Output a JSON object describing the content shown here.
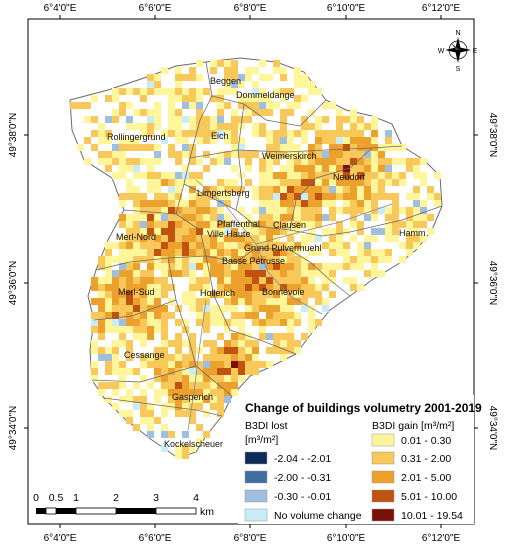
{
  "axes": {
    "top_ticks": [
      "6°4'0\"E",
      "6°6'0\"E",
      "6°8'0\"E",
      "6°10'0\"E",
      "6°12'0\"E"
    ],
    "bottom_ticks": [
      "6°4'0\"E",
      "6°6'0\"E",
      "6°8'0\"E",
      "6°10'0\"E",
      "6°12'0\"E"
    ],
    "left_ticks": [
      "49°38'0\"N",
      "49°36'0\"N",
      "49°34'0\"N"
    ],
    "right_ticks": [
      "49°38'0\"N",
      "49°36'0\"N",
      "49°34'0\"N"
    ]
  },
  "compass": {
    "n": "N",
    "e": "E",
    "s": "S",
    "w": "W"
  },
  "places": [
    "Beggen",
    "Dommeldange",
    "Rollingergrund",
    "Eich",
    "Weimerskirch",
    "Neudorf",
    "Limpertsberg",
    "Pfaffenthal",
    "Clausen",
    "Ville Haute",
    "Merl-Nord",
    "Grund Pulvermuehl",
    "Hamm",
    "Basse Pétrusse",
    "Merl-Sud",
    "Hollerich",
    "Bonnevoie",
    "Cessange",
    "Gasperich",
    "Kockelscheuer"
  ],
  "legend": {
    "title": "Change of buildings volumetry 2001-2019",
    "lost_header": "B3DI lost",
    "lost_units": "[m³/m²]",
    "gain_header": "B3DI gain [m³/m²]",
    "lost_items": [
      {
        "label": "-2.04 - -2.01",
        "color": "#0d2c5a"
      },
      {
        "label": "-2.00 - -0.31",
        "color": "#3f6f9f"
      },
      {
        "label": "-0.30 - -0.01",
        "color": "#9ebfe0"
      },
      {
        "label": "No volume change",
        "color": "#c9ecf7"
      }
    ],
    "gain_items": [
      {
        "label": "0.01 - 0.30",
        "color": "#fff59a"
      },
      {
        "label": "0.31 - 2.00",
        "color": "#f8c85a"
      },
      {
        "label": "2.01 - 5.00",
        "color": "#eda12d"
      },
      {
        "label": "5.01 - 10.00",
        "color": "#c0530f"
      },
      {
        "label": "10.01 - 19.54",
        "color": "#7a1006"
      }
    ]
  },
  "scale_bar": {
    "labels": [
      "0",
      "0.5",
      "1",
      "2",
      "3",
      "4"
    ],
    "unit": "km"
  },
  "colors": {
    "gain_low": "#fff59a",
    "gain_mid": "#f8c85a",
    "gain_high": "#eda12d",
    "gain_very_high": "#c0530f",
    "gain_max": "#7a1006",
    "boundary": "#6b6b6b"
  }
}
